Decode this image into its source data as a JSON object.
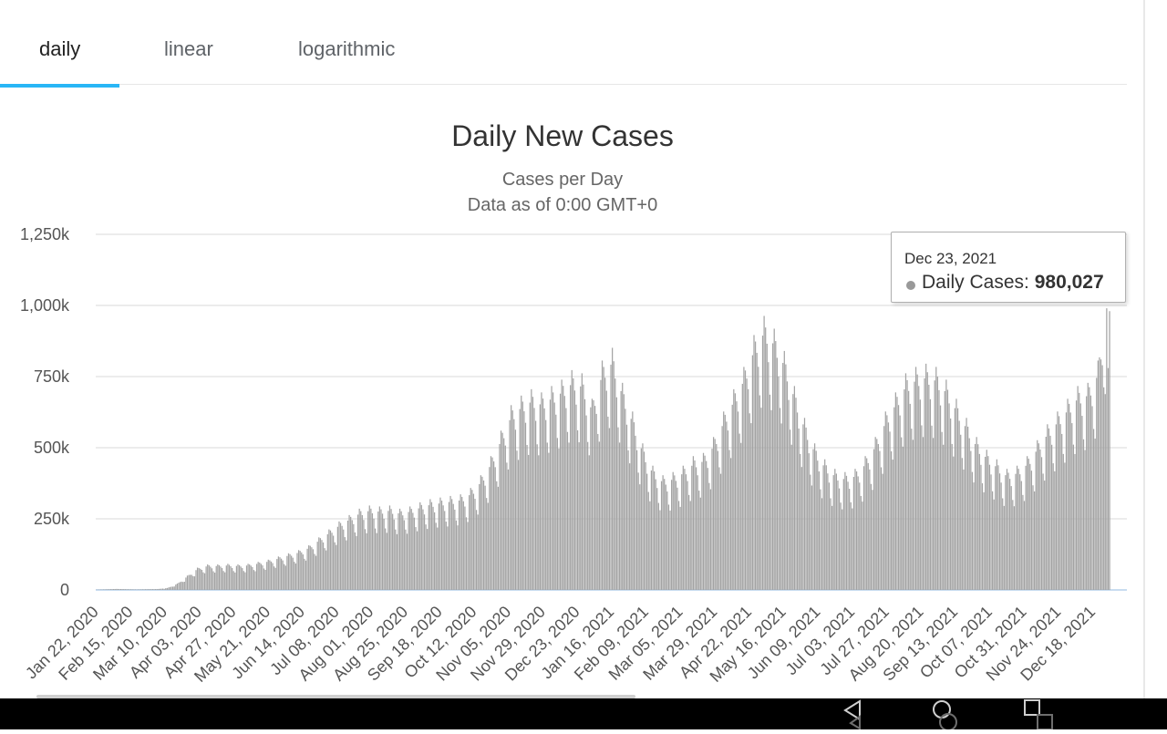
{
  "tabs": [
    {
      "label": "daily",
      "active": true
    },
    {
      "label": "linear",
      "active": false
    },
    {
      "label": "logarithmic",
      "active": false
    }
  ],
  "colors": {
    "accent": "#29b6f6",
    "bar": "#a3a3a3",
    "grid": "#e6e6e6",
    "zero_line": "#c8dcf0"
  },
  "tooltip": {
    "date": "Dec 23, 2021",
    "label": "Daily Cases:",
    "value": "980,027"
  },
  "nav_icons": [
    "back-triangle-icon",
    "home-circle-icon",
    "recent-apps-square-icon"
  ],
  "chart_data": {
    "type": "bar",
    "title": "Daily New Cases",
    "subtitle": [
      "Cases per Day",
      "Data as of 0:00 GMT+0"
    ],
    "xlabel": "",
    "ylabel": "",
    "ylim": [
      0,
      1250000
    ],
    "y_ticks": [
      {
        "value": 0,
        "label": "0"
      },
      {
        "value": 250000,
        "label": "250k"
      },
      {
        "value": 500000,
        "label": "500k"
      },
      {
        "value": 750000,
        "label": "750k"
      },
      {
        "value": 1000000,
        "label": "1,000k"
      },
      {
        "value": 1250000,
        "label": "1,250k"
      }
    ],
    "x_tick_labels": [
      "Jan 22, 2020",
      "Feb 15, 2020",
      "Mar 10, 2020",
      "Apr 03, 2020",
      "Apr 27, 2020",
      "May 21, 2020",
      "Jun 14, 2020",
      "Jul 08, 2020",
      "Aug 01, 2020",
      "Aug 25, 2020",
      "Sep 18, 2020",
      "Oct 12, 2020",
      "Nov 05, 2020",
      "Nov 29, 2020",
      "Dec 23, 2020",
      "Jan 16, 2021",
      "Feb 09, 2021",
      "Mar 05, 2021",
      "Mar 29, 2021",
      "Apr 22, 2021",
      "May 16, 2021",
      "Jun 09, 2021",
      "Jul 03, 2021",
      "Jul 27, 2021",
      "Aug 20, 2021",
      "Sep 13, 2021",
      "Oct 07, 2021",
      "Oct 31, 2021",
      "Nov 24, 2021",
      "Dec 18, 2021"
    ],
    "date_range": [
      "Jan 22, 2020",
      "Dec 23, 2021"
    ],
    "weekly_sample": {
      "dates": [
        "Jan 22, 2020",
        "Jan 29, 2020",
        "Feb 05, 2020",
        "Feb 12, 2020",
        "Feb 19, 2020",
        "Feb 26, 2020",
        "Mar 04, 2020",
        "Mar 11, 2020",
        "Mar 18, 2020",
        "Mar 25, 2020",
        "Apr 01, 2020",
        "Apr 08, 2020",
        "Apr 15, 2020",
        "Apr 22, 2020",
        "Apr 29, 2020",
        "May 06, 2020",
        "May 13, 2020",
        "May 20, 2020",
        "May 27, 2020",
        "Jun 03, 2020",
        "Jun 10, 2020",
        "Jun 17, 2020",
        "Jun 24, 2020",
        "Jul 01, 2020",
        "Jul 08, 2020",
        "Jul 15, 2020",
        "Jul 22, 2020",
        "Jul 29, 2020",
        "Aug 05, 2020",
        "Aug 12, 2020",
        "Aug 19, 2020",
        "Aug 26, 2020",
        "Sep 02, 2020",
        "Sep 09, 2020",
        "Sep 16, 2020",
        "Sep 23, 2020",
        "Sep 30, 2020",
        "Oct 07, 2020",
        "Oct 14, 2020",
        "Oct 21, 2020",
        "Oct 28, 2020",
        "Nov 04, 2020",
        "Nov 11, 2020",
        "Nov 18, 2020",
        "Nov 25, 2020",
        "Dec 02, 2020",
        "Dec 09, 2020",
        "Dec 16, 2020",
        "Dec 23, 2020",
        "Dec 30, 2020",
        "Jan 06, 2021",
        "Jan 13, 2021",
        "Jan 20, 2021",
        "Jan 27, 2021",
        "Feb 03, 2021",
        "Feb 10, 2021",
        "Feb 17, 2021",
        "Feb 24, 2021",
        "Mar 03, 2021",
        "Mar 10, 2021",
        "Mar 17, 2021",
        "Mar 24, 2021",
        "Mar 31, 2021",
        "Apr 07, 2021",
        "Apr 14, 2021",
        "Apr 21, 2021",
        "Apr 28, 2021",
        "May 05, 2021",
        "May 12, 2021",
        "May 19, 2021",
        "May 26, 2021",
        "Jun 02, 2021",
        "Jun 09, 2021",
        "Jun 16, 2021",
        "Jun 23, 2021",
        "Jun 30, 2021",
        "Jul 07, 2021",
        "Jul 14, 2021",
        "Jul 21, 2021",
        "Jul 28, 2021",
        "Aug 04, 2021",
        "Aug 11, 2021",
        "Aug 18, 2021",
        "Aug 25, 2021",
        "Sep 01, 2021",
        "Sep 08, 2021",
        "Sep 15, 2021",
        "Sep 22, 2021",
        "Sep 29, 2021",
        "Oct 06, 2021",
        "Oct 13, 2021",
        "Oct 20, 2021",
        "Oct 27, 2021",
        "Nov 03, 2021",
        "Nov 10, 2021",
        "Nov 17, 2021",
        "Nov 24, 2021",
        "Dec 01, 2021",
        "Dec 08, 2021",
        "Dec 15, 2021",
        "Dec 22, 2021"
      ],
      "values": [
        600,
        2000,
        3500,
        2500,
        1500,
        2500,
        3000,
        6000,
        20000,
        45000,
        70000,
        80000,
        80000,
        82000,
        80000,
        82000,
        88000,
        95000,
        105000,
        115000,
        125000,
        140000,
        165000,
        190000,
        215000,
        235000,
        255000,
        265000,
        262000,
        265000,
        255000,
        262000,
        275000,
        285000,
        290000,
        295000,
        300000,
        320000,
        360000,
        420000,
        500000,
        580000,
        610000,
        630000,
        620000,
        640000,
        660000,
        690000,
        680000,
        600000,
        720000,
        760000,
        650000,
        560000,
        460000,
        390000,
        360000,
        370000,
        390000,
        420000,
        430000,
        480000,
        560000,
        630000,
        700000,
        800000,
        860000,
        820000,
        750000,
        640000,
        540000,
        460000,
        410000,
        380000,
        370000,
        380000,
        420000,
        480000,
        560000,
        620000,
        680000,
        700000,
        710000,
        700000,
        660000,
        600000,
        540000,
        480000,
        440000,
        410000,
        380000,
        390000,
        420000,
        470000,
        520000,
        560000,
        600000,
        640000,
        650000,
        720000,
        980027
      ]
    }
  }
}
